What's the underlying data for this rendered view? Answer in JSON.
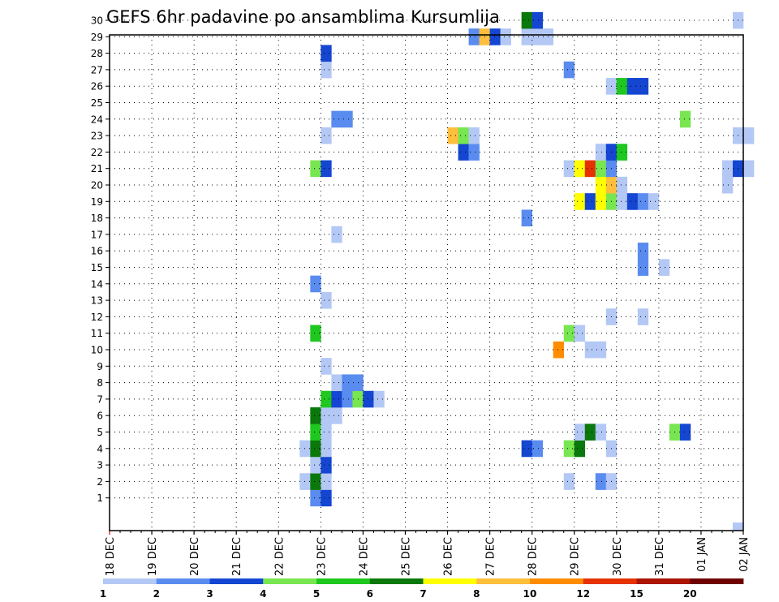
{
  "chart_data": {
    "type": "heatmap",
    "title": "GEFS 6hr padavine po ansamblima Kursumlija",
    "x_labels": [
      "18 DEC",
      "19 DEC",
      "20 DEC",
      "21 DEC",
      "22 DEC",
      "23 DEC",
      "24 DEC",
      "25 DEC",
      "26 DEC",
      "27 DEC",
      "28 DEC",
      "29 DEC",
      "30 DEC",
      "31 DEC",
      "01 JAN",
      "02 JAN"
    ],
    "y_labels": [
      1,
      2,
      3,
      4,
      5,
      6,
      7,
      8,
      9,
      10,
      11,
      12,
      13,
      14,
      15,
      16,
      17,
      18,
      19,
      20,
      21,
      22,
      23,
      24,
      25,
      26,
      27,
      28,
      29,
      30
    ],
    "x_range": [
      "18 DEC",
      "02 JAN"
    ],
    "y_range": [
      0,
      30
    ],
    "grid": true,
    "steps_per_day": 4,
    "colorbar": {
      "labels": [
        "1",
        "2",
        "3",
        "4",
        "5",
        "6",
        "7",
        "8",
        "10",
        "12",
        "15",
        "20"
      ],
      "colors": [
        "#b4c8f5",
        "#5a8cf0",
        "#1446d2",
        "#78e650",
        "#1ec81e",
        "#0a780a",
        "#ffff00",
        "#ffbe3c",
        "#ff8c00",
        "#e63200",
        "#aa1400",
        "#6e0000"
      ]
    },
    "cells": [
      {
        "member": 1,
        "start": "22 DEC 18:00",
        "level": 2
      },
      {
        "member": 1,
        "start": "23 DEC 00:00",
        "level": 3
      },
      {
        "member": 2,
        "start": "22 DEC 12:00",
        "level": 1
      },
      {
        "member": 2,
        "start": "22 DEC 18:00",
        "level": 6
      },
      {
        "member": 2,
        "start": "23 DEC 00:00",
        "level": 1
      },
      {
        "member": 2,
        "start": "28 DEC 18:00",
        "level": 1
      },
      {
        "member": 2,
        "start": "29 DEC 12:00",
        "level": 2
      },
      {
        "member": 2,
        "start": "29 DEC 18:00",
        "level": 1
      },
      {
        "member": 3,
        "start": "22 DEC 18:00",
        "level": 1
      },
      {
        "member": 3,
        "start": "23 DEC 00:00",
        "level": 3
      },
      {
        "member": 4,
        "start": "22 DEC 12:00",
        "level": 1
      },
      {
        "member": 4,
        "start": "22 DEC 18:00",
        "level": 6
      },
      {
        "member": 4,
        "start": "23 DEC 00:00",
        "level": 1
      },
      {
        "member": 4,
        "start": "27 DEC 18:00",
        "level": 3
      },
      {
        "member": 4,
        "start": "28 DEC 00:00",
        "level": 2
      },
      {
        "member": 4,
        "start": "28 DEC 18:00",
        "level": 4
      },
      {
        "member": 4,
        "start": "29 DEC 00:00",
        "level": 6
      },
      {
        "member": 4,
        "start": "29 DEC 18:00",
        "level": 1
      },
      {
        "member": 5,
        "start": "22 DEC 18:00",
        "level": 5
      },
      {
        "member": 5,
        "start": "23 DEC 00:00",
        "level": 1
      },
      {
        "member": 5,
        "start": "29 DEC 00:00",
        "level": 1
      },
      {
        "member": 5,
        "start": "29 DEC 06:00",
        "level": 6
      },
      {
        "member": 5,
        "start": "29 DEC 12:00",
        "level": 1
      },
      {
        "member": 5,
        "start": "31 DEC 06:00",
        "level": 4
      },
      {
        "member": 5,
        "start": "31 DEC 12:00",
        "level": 3
      },
      {
        "member": 6,
        "start": "22 DEC 18:00",
        "level": 6
      },
      {
        "member": 6,
        "start": "23 DEC 00:00",
        "level": 1
      },
      {
        "member": 6,
        "start": "23 DEC 06:00",
        "level": 1
      },
      {
        "member": 7,
        "start": "23 DEC 00:00",
        "level": 5
      },
      {
        "member": 7,
        "start": "23 DEC 06:00",
        "level": 3
      },
      {
        "member": 7,
        "start": "23 DEC 12:00",
        "level": 2
      },
      {
        "member": 7,
        "start": "23 DEC 18:00",
        "level": 4
      },
      {
        "member": 7,
        "start": "24 DEC 00:00",
        "level": 3
      },
      {
        "member": 7,
        "start": "24 DEC 06:00",
        "level": 1
      },
      {
        "member": 8,
        "start": "23 DEC 06:00",
        "level": 1
      },
      {
        "member": 8,
        "start": "23 DEC 12:00",
        "level": 2
      },
      {
        "member": 8,
        "start": "23 DEC 18:00",
        "level": 2
      },
      {
        "member": 9,
        "start": "23 DEC 00:00",
        "level": 1
      },
      {
        "member": 10,
        "start": "28 DEC 12:00",
        "level": 10
      },
      {
        "member": 10,
        "start": "29 DEC 06:00",
        "level": 1
      },
      {
        "member": 10,
        "start": "29 DEC 12:00",
        "level": 1
      },
      {
        "member": 11,
        "start": "22 DEC 18:00",
        "level": 5
      },
      {
        "member": 11,
        "start": "28 DEC 18:00",
        "level": 4
      },
      {
        "member": 11,
        "start": "29 DEC 00:00",
        "level": 1
      },
      {
        "member": 12,
        "start": "29 DEC 18:00",
        "level": 1
      },
      {
        "member": 12,
        "start": "30 DEC 12:00",
        "level": 1
      },
      {
        "member": 13,
        "start": "23 DEC 00:00",
        "level": 1
      },
      {
        "member": 14,
        "start": "22 DEC 18:00",
        "level": 2
      },
      {
        "member": 15,
        "start": "30 DEC 12:00",
        "level": 2
      },
      {
        "member": 15,
        "start": "31 DEC 00:00",
        "level": 1
      },
      {
        "member": 16,
        "start": "30 DEC 12:00",
        "level": 2
      },
      {
        "member": 17,
        "start": "23 DEC 06:00",
        "level": 1
      },
      {
        "member": 18,
        "start": "27 DEC 18:00",
        "level": 2
      },
      {
        "member": 19,
        "start": "29 DEC 00:00",
        "level": 7
      },
      {
        "member": 19,
        "start": "29 DEC 06:00",
        "level": 3
      },
      {
        "member": 19,
        "start": "29 DEC 12:00",
        "level": 7
      },
      {
        "member": 19,
        "start": "29 DEC 18:00",
        "level": 4
      },
      {
        "member": 19,
        "start": "30 DEC 00:00",
        "level": 1
      },
      {
        "member": 19,
        "start": "30 DEC 06:00",
        "level": 3
      },
      {
        "member": 19,
        "start": "30 DEC 12:00",
        "level": 2
      },
      {
        "member": 19,
        "start": "30 DEC 18:00",
        "level": 1
      },
      {
        "member": 20,
        "start": "29 DEC 12:00",
        "level": 7
      },
      {
        "member": 20,
        "start": "29 DEC 18:00",
        "level": 8
      },
      {
        "member": 20,
        "start": "30 DEC 00:00",
        "level": 1
      },
      {
        "member": 20,
        "start": "01 JAN 12:00",
        "level": 1
      },
      {
        "member": 21,
        "start": "22 DEC 18:00",
        "level": 4
      },
      {
        "member": 21,
        "start": "23 DEC 00:00",
        "level": 3
      },
      {
        "member": 21,
        "start": "28 DEC 18:00",
        "level": 1
      },
      {
        "member": 21,
        "start": "29 DEC 00:00",
        "level": 7
      },
      {
        "member": 21,
        "start": "29 DEC 06:00",
        "level": 12
      },
      {
        "member": 21,
        "start": "29 DEC 12:00",
        "level": 4
      },
      {
        "member": 21,
        "start": "29 DEC 18:00",
        "level": 2
      },
      {
        "member": 21,
        "start": "01 JAN 12:00",
        "level": 1
      },
      {
        "member": 21,
        "start": "01 JAN 18:00",
        "level": 3
      },
      {
        "member": 21,
        "start": "02 JAN 00:00",
        "level": 1
      },
      {
        "member": 22,
        "start": "26 DEC 06:00",
        "level": 3
      },
      {
        "member": 22,
        "start": "26 DEC 12:00",
        "level": 2
      },
      {
        "member": 22,
        "start": "29 DEC 12:00",
        "level": 1
      },
      {
        "member": 22,
        "start": "29 DEC 18:00",
        "level": 3
      },
      {
        "member": 22,
        "start": "30 DEC 00:00",
        "level": 5
      },
      {
        "member": 23,
        "start": "23 DEC 00:00",
        "level": 1
      },
      {
        "member": 23,
        "start": "26 DEC 00:00",
        "level": 8
      },
      {
        "member": 23,
        "start": "26 DEC 06:00",
        "level": 4
      },
      {
        "member": 23,
        "start": "26 DEC 12:00",
        "level": 1
      },
      {
        "member": 23,
        "start": "01 JAN 18:00",
        "level": 1
      },
      {
        "member": 23,
        "start": "02 JAN 00:00",
        "level": 1
      },
      {
        "member": 24,
        "start": "23 DEC 06:00",
        "level": 2
      },
      {
        "member": 24,
        "start": "23 DEC 12:00",
        "level": 2
      },
      {
        "member": 24,
        "start": "31 DEC 12:00",
        "level": 4
      },
      {
        "member": 26,
        "start": "29 DEC 18:00",
        "level": 1
      },
      {
        "member": 26,
        "start": "30 DEC 00:00",
        "level": 5
      },
      {
        "member": 26,
        "start": "30 DEC 06:00",
        "level": 3
      },
      {
        "member": 26,
        "start": "30 DEC 12:00",
        "level": 3
      },
      {
        "member": 27,
        "start": "23 DEC 00:00",
        "level": 1
      },
      {
        "member": 27,
        "start": "28 DEC 18:00",
        "level": 2
      },
      {
        "member": 28,
        "start": "23 DEC 00:00",
        "level": 3
      },
      {
        "member": 29,
        "start": "26 DEC 12:00",
        "level": 2
      },
      {
        "member": 29,
        "start": "26 DEC 18:00",
        "level": 8
      },
      {
        "member": 29,
        "start": "27 DEC 00:00",
        "level": 3
      },
      {
        "member": 29,
        "start": "27 DEC 06:00",
        "level": 1
      },
      {
        "member": 29,
        "start": "27 DEC 18:00",
        "level": 1
      },
      {
        "member": 29,
        "start": "28 DEC 00:00",
        "level": 1
      },
      {
        "member": 29,
        "start": "28 DEC 06:00",
        "level": 1
      },
      {
        "member": 30,
        "start": "27 DEC 18:00",
        "level": 6
      },
      {
        "member": 30,
        "start": "28 DEC 00:00",
        "level": 3
      },
      {
        "member": 30,
        "start": "01 JAN 18:00",
        "level": 1
      },
      {
        "member": 0,
        "start": "01 JAN 18:00",
        "level": 1
      }
    ]
  }
}
